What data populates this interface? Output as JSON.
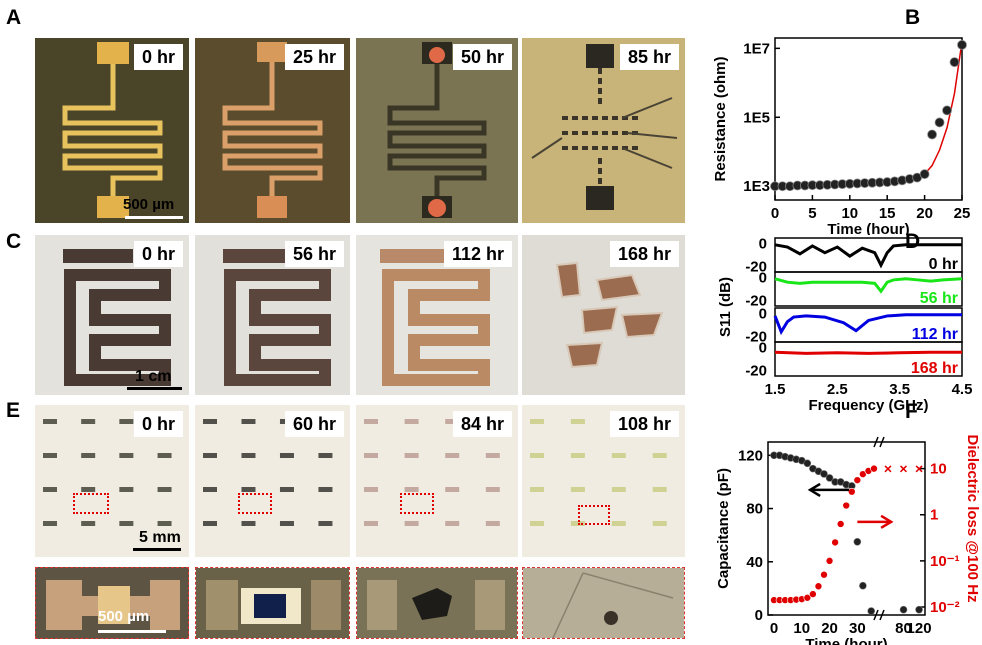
{
  "panels": {
    "A": {
      "letter": "A",
      "times": [
        "0 hr",
        "25 hr",
        "50 hr",
        "85 hr"
      ],
      "scale": "500 µm"
    },
    "B": {
      "letter": "B"
    },
    "C": {
      "letter": "C",
      "times": [
        "0 hr",
        "56 hr",
        "112 hr",
        "168 hr"
      ],
      "scale": "1 cm"
    },
    "D": {
      "letter": "D"
    },
    "E": {
      "letter": "E",
      "times": [
        "0 hr",
        "60 hr",
        "84 hr",
        "108 hr"
      ],
      "scale": "5 mm",
      "zoom_scale": "500 µm"
    },
    "F": {
      "letter": "F"
    }
  },
  "colors": {
    "red": "#e00000",
    "green": "#19e619",
    "blue": "#0000e0",
    "black": "#000000"
  },
  "chart_data": [
    {
      "id": "B",
      "type": "scatter",
      "xlabel": "Time (hour)",
      "ylabel": "Resistance (ohm)",
      "xlim": [
        0,
        25
      ],
      "ylim_log10": [
        2.6,
        7.3
      ],
      "yscale": "log",
      "xticks": [
        0,
        5,
        10,
        15,
        20,
        25
      ],
      "yticks": [
        "1E3",
        "1E5",
        "1E7"
      ],
      "series": [
        {
          "kind": "points",
          "x": [
            0,
            1,
            2,
            3,
            4,
            5,
            6,
            7,
            8,
            9,
            10,
            11,
            12,
            13,
            14,
            15,
            16,
            17,
            18,
            19,
            20,
            21,
            22,
            23,
            24,
            25
          ],
          "log10y": [
            3,
            3,
            3,
            3.02,
            3.02,
            3.03,
            3.03,
            3.04,
            3.05,
            3.06,
            3.07,
            3.08,
            3.09,
            3.1,
            3.11,
            3.12,
            3.14,
            3.17,
            3.21,
            3.25,
            3.35,
            4.5,
            4.85,
            5.2,
            6.6,
            7.1
          ]
        },
        {
          "kind": "fit",
          "color": "#e00000",
          "x": [
            0,
            5,
            10,
            15,
            18,
            20,
            21,
            22,
            23,
            24,
            25
          ],
          "log10y": [
            2.95,
            2.99,
            3.04,
            3.12,
            3.2,
            3.35,
            3.6,
            4.05,
            4.7,
            5.7,
            7.2
          ]
        }
      ]
    },
    {
      "id": "D",
      "type": "line",
      "xlabel": "Frequency (GHz)",
      "ylabel": "S11 (dB)",
      "xlim": [
        1.5,
        4.5
      ],
      "xticks": [
        "1.5",
        "2.5",
        "3.5",
        "4.5"
      ],
      "yticks_per_subplot": [
        "0",
        "-20"
      ],
      "series": [
        {
          "name": "0 hr",
          "color": "#000000",
          "x": [
            1.5,
            1.7,
            1.9,
            2.1,
            2.3,
            2.5,
            2.7,
            2.9,
            3.1,
            3.2,
            3.3,
            3.4,
            3.6,
            3.8,
            4.0,
            4.2,
            4.5
          ],
          "y": [
            -1,
            -3,
            -9,
            -2,
            -8,
            -3,
            -11,
            -4,
            -8,
            -19,
            -8,
            -2,
            -1,
            -1,
            -1,
            -1,
            -1
          ]
        },
        {
          "name": "56 hr",
          "color": "#19e619",
          "x": [
            1.5,
            1.7,
            1.9,
            2.1,
            2.3,
            2.5,
            2.7,
            2.9,
            3.1,
            3.2,
            3.3,
            3.4,
            3.6,
            3.8,
            4.0,
            4.2,
            4.5
          ],
          "y": [
            -1,
            -4,
            -5,
            -4,
            -4,
            -4,
            -4,
            -4,
            -5,
            -12,
            -4,
            -2,
            -1,
            -2,
            -3,
            -2,
            -1
          ]
        },
        {
          "name": "112 hr",
          "color": "#0000e0",
          "x": [
            1.5,
            1.6,
            1.7,
            1.8,
            2.0,
            2.3,
            2.6,
            2.8,
            3.0,
            3.3,
            3.6,
            4.0,
            4.5
          ],
          "y": [
            -2,
            -16,
            -7,
            -3,
            -2,
            -3,
            -8,
            -15,
            -6,
            -2,
            -1,
            -1,
            -1
          ]
        },
        {
          "name": "168 hr",
          "color": "#e00000",
          "x": [
            1.5,
            2.0,
            2.5,
            3.0,
            3.5,
            4.0,
            4.5
          ],
          "y": [
            -4,
            -5,
            -4.5,
            -5,
            -4.5,
            -4,
            -4
          ]
        }
      ]
    },
    {
      "id": "F",
      "type": "scatter",
      "xlabel": "Time (hour)",
      "ylabel": "Capacitance (pF)",
      "y2label": "Dielectric loss @100 Hz",
      "ylim": [
        0,
        130
      ],
      "yticks": [
        0,
        40,
        80,
        120
      ],
      "y2ticks": [
        "10",
        "1",
        "10⁻¹",
        "10⁻²"
      ],
      "xticks": [
        "0",
        "10",
        "20",
        "30",
        "80",
        "120"
      ],
      "series": [
        {
          "name": "Capacitance",
          "color": "#000000",
          "x": [
            0,
            2,
            4,
            6,
            8,
            10,
            12,
            14,
            16,
            18,
            20,
            22,
            24,
            26,
            28,
            30,
            32,
            35
          ],
          "y": [
            120,
            120,
            119,
            118,
            117,
            116,
            114,
            110,
            108,
            106,
            103,
            100,
            100,
            98,
            97,
            55,
            22,
            3
          ]
        },
        {
          "name": "Capacitance (late)",
          "color": "#000000",
          "x": [
            80,
            120
          ],
          "y": [
            4,
            4
          ]
        },
        {
          "name": "Dielectric loss",
          "color": "#e00000",
          "x": [
            0,
            2,
            4,
            6,
            8,
            10,
            12,
            14,
            16,
            18,
            20,
            22,
            24,
            26,
            28,
            30,
            32,
            34,
            36
          ],
          "log10y": [
            -1.85,
            -1.85,
            -1.85,
            -1.85,
            -1.84,
            -1.83,
            -1.8,
            -1.72,
            -1.55,
            -1.3,
            -1.0,
            -0.6,
            -0.2,
            0.2,
            0.5,
            0.75,
            0.88,
            0.95,
            1.0
          ]
        },
        {
          "name": "Failed (x)",
          "marker": "x",
          "color": "#e00000",
          "x": [
            40,
            80,
            120
          ],
          "log10y": [
            1,
            1,
            1
          ]
        }
      ],
      "annotations": [
        "arrow-left black",
        "arrow-right red"
      ]
    }
  ]
}
